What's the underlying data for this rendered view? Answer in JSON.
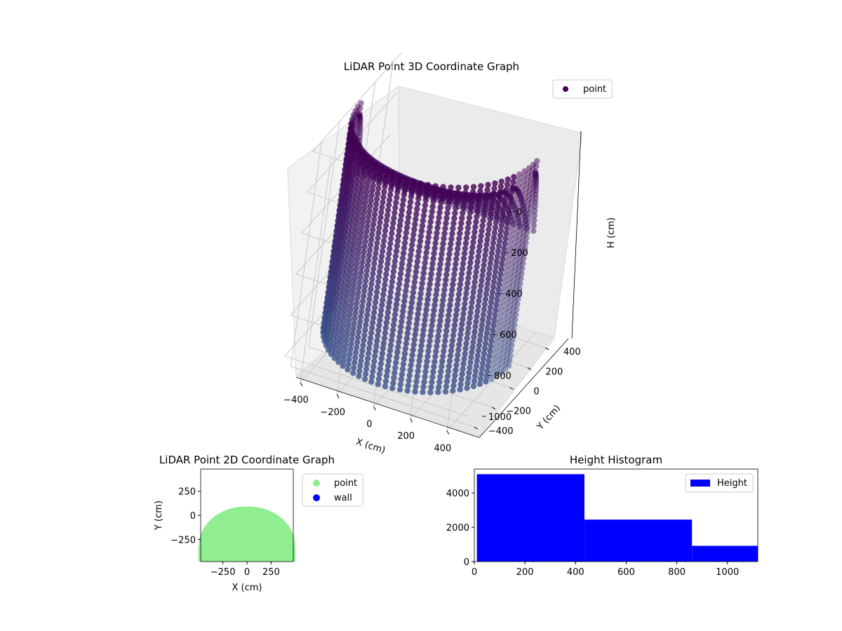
{
  "colors": {
    "points3d_dark": "#440154",
    "points3d_light": "#3b528b",
    "point2d": "#90ee90",
    "wall": "#0000ff",
    "histogram": "#0000ff",
    "pane": "#f2f2f2",
    "grid": "#c8c8c8"
  },
  "chart_data": [
    {
      "type": "scatter3d",
      "title": "LiDAR Point 3D Coordinate Graph",
      "xlabel": "X (cm)",
      "ylabel": "Y (cm)",
      "zlabel": "H (cm)",
      "xlim": [
        -500,
        500
      ],
      "ylim": [
        -500,
        500
      ],
      "zlim": [
        1100,
        0
      ],
      "z_inverted": true,
      "xticks": [
        -400,
        -200,
        0,
        200,
        400
      ],
      "yticks": [
        -400,
        -200,
        0,
        200,
        400
      ],
      "zticks": [
        0,
        200,
        400,
        600,
        800,
        1000
      ],
      "legend": {
        "position": "top-right",
        "entries": [
          {
            "label": "point",
            "color": "#440154"
          }
        ]
      },
      "shape": {
        "description": "points on a half-cylinder wall and curved ceiling",
        "radius": 480,
        "height": 1000
      }
    },
    {
      "type": "scatter",
      "title": "LiDAR Point 2D Coordinate Graph",
      "xlabel": "X (cm)",
      "ylabel": "Y (cm)",
      "xlim": [
        -480,
        480
      ],
      "ylim": [
        -480,
        480
      ],
      "xticks": [
        -250,
        0,
        250
      ],
      "yticks": [
        -250,
        0,
        250
      ],
      "legend": {
        "position": "outside-right",
        "entries": [
          {
            "label": "point",
            "color": "#90ee90"
          },
          {
            "label": "wall",
            "color": "#0000ff"
          }
        ]
      },
      "profile": {
        "cap_y": 90,
        "y_at_x_edges": -320
      }
    },
    {
      "type": "bar",
      "title": "Height Histogram",
      "xlim": [
        0,
        1120
      ],
      "ylim": [
        0,
        5400
      ],
      "xticks": [
        0,
        200,
        400,
        600,
        800,
        1000
      ],
      "yticks": [
        0,
        2000,
        4000
      ],
      "bins": [
        {
          "x0": 10,
          "x1": 435,
          "count": 5100
        },
        {
          "x0": 435,
          "x1": 860,
          "count": 2450
        },
        {
          "x0": 860,
          "x1": 1120,
          "count": 920
        }
      ],
      "legend": {
        "position": "top-right",
        "entries": [
          {
            "label": "Height",
            "color": "#0000ff"
          }
        ]
      }
    }
  ]
}
